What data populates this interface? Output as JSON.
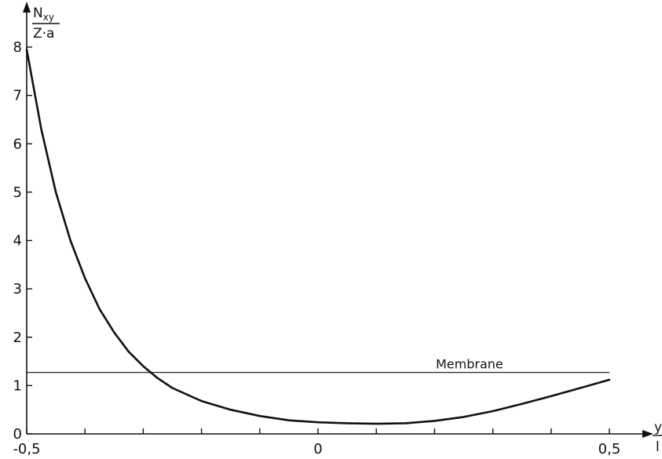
{
  "chart_data": {
    "type": "line",
    "title": "",
    "ylabel": {
      "numerator": "N",
      "numerator_sub": "xy",
      "denominator": "Z·a"
    },
    "xlabel": {
      "numerator": "y",
      "denominator": "l"
    },
    "xlim": [
      -0.5,
      0.5
    ],
    "ylim": [
      0,
      8.5
    ],
    "grid": false,
    "x_tick_values": [
      -0.5,
      -0.4,
      -0.3,
      -0.2,
      -0.1,
      0,
      0.1,
      0.2,
      0.3,
      0.4,
      0.5
    ],
    "x_tick_labels": [
      {
        "value": -0.5,
        "label": "-0,5"
      },
      {
        "value": 0,
        "label": "0"
      },
      {
        "value": 0.5,
        "label": "0,5"
      }
    ],
    "y_ticks": [
      {
        "value": 0,
        "label": "0"
      },
      {
        "value": 1,
        "label": "1"
      },
      {
        "value": 2,
        "label": "2"
      },
      {
        "value": 3,
        "label": "3"
      },
      {
        "value": 4,
        "label": "4"
      },
      {
        "value": 5,
        "label": "5"
      },
      {
        "value": 6,
        "label": "6"
      },
      {
        "value": 7,
        "label": "7"
      },
      {
        "value": 8,
        "label": "8"
      }
    ],
    "series": [
      {
        "x": [
          -0.5,
          -0.475,
          -0.45,
          -0.425,
          -0.4,
          -0.375,
          -0.35,
          -0.325,
          -0.3,
          -0.275,
          -0.25,
          -0.2,
          -0.15,
          -0.1,
          -0.05,
          0.0,
          0.05,
          0.1,
          0.15,
          0.2,
          0.25,
          0.3,
          0.35,
          0.4,
          0.45,
          0.5
        ],
        "y": [
          7.95,
          6.3,
          5.0,
          4.0,
          3.22,
          2.58,
          2.1,
          1.7,
          1.4,
          1.15,
          0.95,
          0.68,
          0.5,
          0.37,
          0.28,
          0.24,
          0.22,
          0.21,
          0.22,
          0.27,
          0.35,
          0.47,
          0.62,
          0.78,
          0.95,
          1.12
        ]
      }
    ],
    "reference_lines": [
      {
        "label": "Membrane",
        "y": 1.27
      }
    ]
  }
}
